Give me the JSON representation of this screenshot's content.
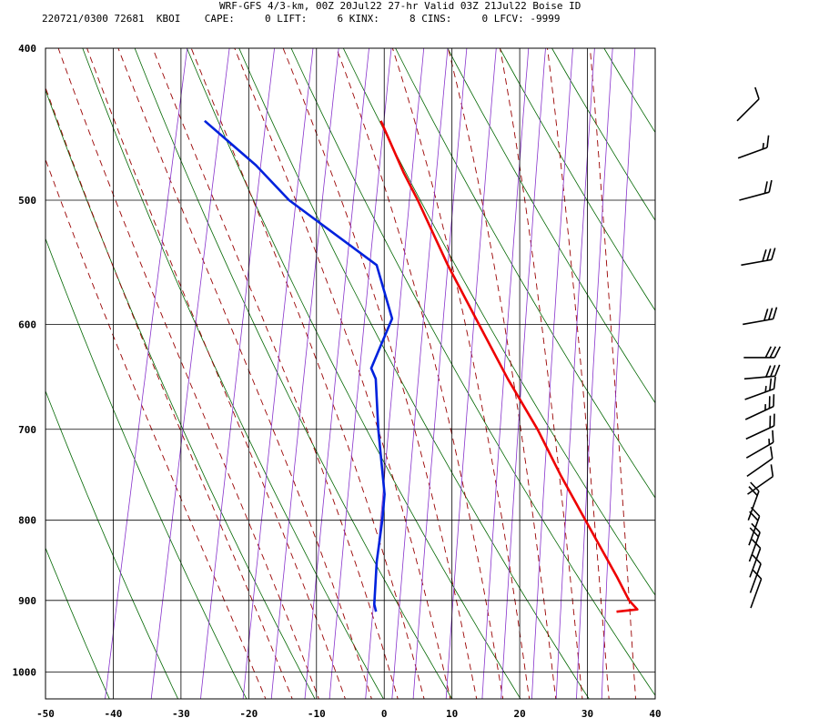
{
  "header": {
    "title": "WRF-GFS 4/3-km, 00Z 20Jul22 27-hr Valid 03Z 21Jul22 Boise ID",
    "meta": "220721/0300 72681  KBOI    CAPE:     0 LIFT:     6 KINX:     8 CINS:     0 LFCV: -9999"
  },
  "chart_data": {
    "type": "skew-t",
    "x_axis": {
      "label": "",
      "unit": "degC",
      "range": [
        -50,
        40
      ],
      "ticks": [
        -50,
        -40,
        -30,
        -20,
        -10,
        0,
        10,
        20,
        30,
        40
      ]
    },
    "y_axis": {
      "label": "",
      "unit": "hPa",
      "scale": "log",
      "range": [
        1040,
        400
      ],
      "ticks": [
        400,
        500,
        600,
        700,
        800,
        900,
        1000
      ]
    },
    "grid": true,
    "background_lines": {
      "isotherm_color": "#000000",
      "isobar_color": "#000000",
      "dry_adiabat_color": "#006600",
      "moist_adiabat_color": "#990000",
      "mixing_ratio_color": "#8833cc"
    },
    "series": [
      {
        "type": "temperature",
        "color": "#ee0000",
        "points": [
          {
            "p": 915,
            "t": 31.5
          },
          {
            "p": 912,
            "t": 34.5
          },
          {
            "p": 900,
            "t": 33.0
          },
          {
            "p": 870,
            "t": 30.5
          },
          {
            "p": 800,
            "t": 24.0
          },
          {
            "p": 750,
            "t": 19.0
          },
          {
            "p": 700,
            "t": 14.0
          },
          {
            "p": 650,
            "t": 8.0
          },
          {
            "p": 600,
            "t": 2.0
          },
          {
            "p": 550,
            "t": -4.5
          },
          {
            "p": 500,
            "t": -11.0
          },
          {
            "p": 480,
            "t": -14.0
          },
          {
            "p": 445,
            "t": -19.0
          }
        ]
      },
      {
        "type": "dewpoint",
        "color": "#0022dd",
        "points": [
          {
            "p": 915,
            "t": -4.0
          },
          {
            "p": 905,
            "t": -4.5
          },
          {
            "p": 850,
            "t": -5.5
          },
          {
            "p": 800,
            "t": -6.0
          },
          {
            "p": 770,
            "t": -6.5
          },
          {
            "p": 700,
            "t": -9.5
          },
          {
            "p": 650,
            "t": -11.5
          },
          {
            "p": 640,
            "t": -12.5
          },
          {
            "p": 595,
            "t": -11.0
          },
          {
            "p": 550,
            "t": -15.0
          },
          {
            "p": 500,
            "t": -30.0
          },
          {
            "p": 475,
            "t": -36.0
          },
          {
            "p": 445,
            "t": -45.0
          }
        ]
      }
    ],
    "wind_barbs": [
      {
        "p": 910,
        "speed_kt": 10,
        "dir_deg": 200
      },
      {
        "p": 890,
        "speed_kt": 10,
        "dir_deg": 200
      },
      {
        "p": 870,
        "speed_kt": 10,
        "dir_deg": 200
      },
      {
        "p": 850,
        "speed_kt": 20,
        "dir_deg": 200
      },
      {
        "p": 830,
        "speed_kt": 20,
        "dir_deg": 200
      },
      {
        "p": 800,
        "speed_kt": 20,
        "dir_deg": 200
      },
      {
        "p": 770,
        "speed_kt": 10,
        "dir_deg": 235
      },
      {
        "p": 750,
        "speed_kt": 10,
        "dir_deg": 235
      },
      {
        "p": 730,
        "speed_kt": 15,
        "dir_deg": 240
      },
      {
        "p": 710,
        "speed_kt": 20,
        "dir_deg": 245
      },
      {
        "p": 690,
        "speed_kt": 25,
        "dir_deg": 245
      },
      {
        "p": 670,
        "speed_kt": 25,
        "dir_deg": 250
      },
      {
        "p": 650,
        "speed_kt": 30,
        "dir_deg": 265
      },
      {
        "p": 630,
        "speed_kt": 30,
        "dir_deg": 270
      },
      {
        "p": 600,
        "speed_kt": 30,
        "dir_deg": 260
      },
      {
        "p": 550,
        "speed_kt": 30,
        "dir_deg": 260
      },
      {
        "p": 500,
        "speed_kt": 20,
        "dir_deg": 255
      },
      {
        "p": 470,
        "speed_kt": 15,
        "dir_deg": 250
      },
      {
        "p": 445,
        "speed_kt": 10,
        "dir_deg": 225
      }
    ]
  }
}
